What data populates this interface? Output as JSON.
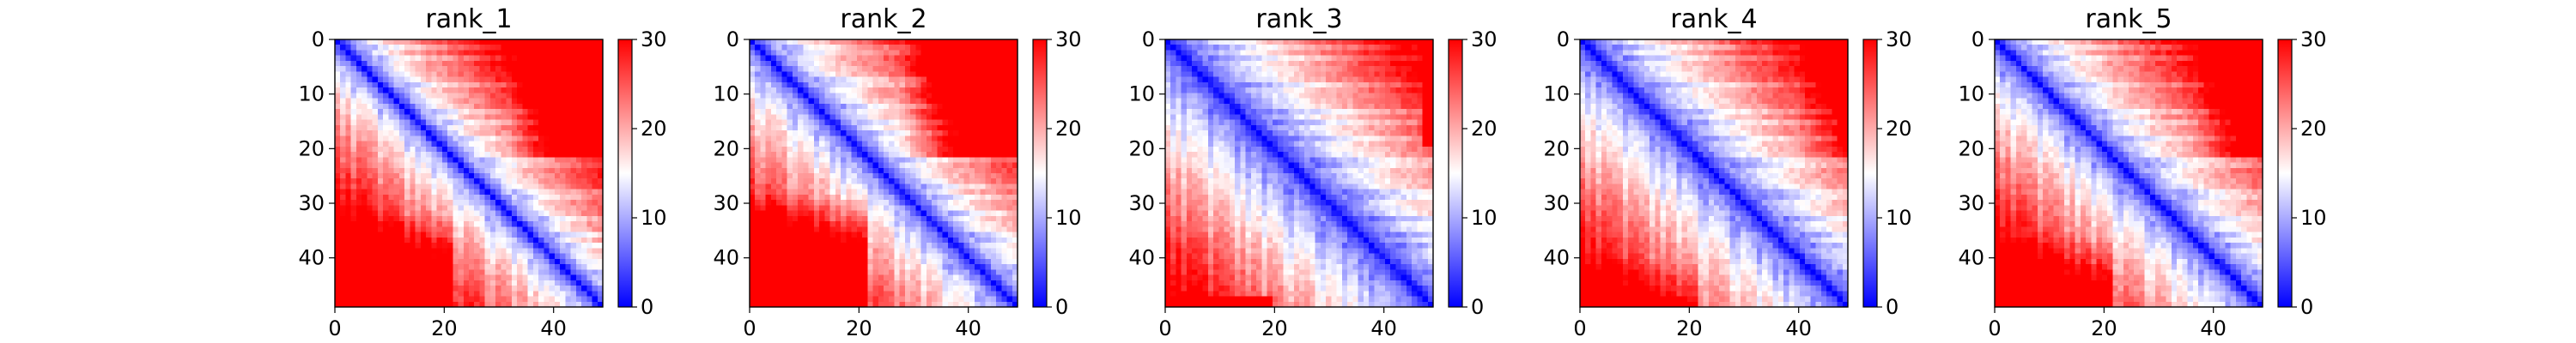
{
  "chart_data": [
    {
      "type": "heatmap",
      "title": "rank_1",
      "size": 50,
      "xlim": [
        0,
        49
      ],
      "ylim": [
        49,
        0
      ],
      "xticks": [
        0,
        20,
        40
      ],
      "yticks": [
        0,
        10,
        20,
        30,
        40
      ],
      "colorbar": {
        "min": 0,
        "max": 30,
        "ticks": [
          0,
          10,
          20,
          30
        ],
        "colormap": "bwr"
      },
      "values_description_model": {
        "scale": 0.68,
        "a": 12.0,
        "b": 32,
        "strength": 0.9,
        "cross": 3,
        "bottom": false
      }
    },
    {
      "type": "heatmap",
      "title": "rank_2",
      "size": 50,
      "xlim": [
        0,
        49
      ],
      "ylim": [
        49,
        0
      ],
      "xticks": [
        0,
        20,
        40
      ],
      "yticks": [
        0,
        10,
        20,
        30,
        40
      ],
      "colorbar": {
        "min": 0,
        "max": 30,
        "ticks": [
          0,
          10,
          20,
          30
        ],
        "colormap": "bwr"
      },
      "values_description_model": {
        "scale": 0.62,
        "a": 11.0,
        "b": 28,
        "strength": 1.0,
        "cross": 2,
        "bottom": false
      }
    },
    {
      "type": "heatmap",
      "title": "rank_3",
      "size": 50,
      "xlim": [
        0,
        49
      ],
      "ylim": [
        49,
        0
      ],
      "xticks": [
        0,
        20,
        40
      ],
      "yticks": [
        0,
        10,
        20,
        30,
        40
      ],
      "colorbar": {
        "min": 0,
        "max": 30,
        "ticks": [
          0,
          10,
          20,
          30
        ],
        "colormap": "bwr"
      },
      "values_description_model": {
        "scale": 0.55,
        "a": 8.0,
        "b": 99,
        "strength": 0.0,
        "cross": 3,
        "bottom": true
      }
    },
    {
      "type": "heatmap",
      "title": "rank_4",
      "size": 50,
      "xlim": [
        0,
        49
      ],
      "ylim": [
        49,
        0
      ],
      "xticks": [
        0,
        20,
        40
      ],
      "yticks": [
        0,
        10,
        20,
        30,
        40
      ],
      "colorbar": {
        "min": 0,
        "max": 30,
        "ticks": [
          0,
          10,
          20,
          30
        ],
        "colormap": "bwr"
      },
      "values_description_model": {
        "scale": 0.58,
        "a": 9.0,
        "b": 40,
        "strength": 0.5,
        "cross": 3,
        "bottom": true
      }
    },
    {
      "type": "heatmap",
      "title": "rank_5",
      "size": 50,
      "xlim": [
        0,
        49
      ],
      "ylim": [
        49,
        0
      ],
      "xticks": [
        0,
        20,
        40
      ],
      "yticks": [
        0,
        10,
        20,
        30,
        40
      ],
      "colorbar": {
        "min": 0,
        "max": 30,
        "ticks": [
          0,
          10,
          20,
          30
        ],
        "colormap": "bwr"
      },
      "values_description_model": {
        "scale": 0.62,
        "a": 10.0,
        "b": 36,
        "strength": 0.7,
        "cross": 3,
        "bottom": true
      }
    }
  ]
}
